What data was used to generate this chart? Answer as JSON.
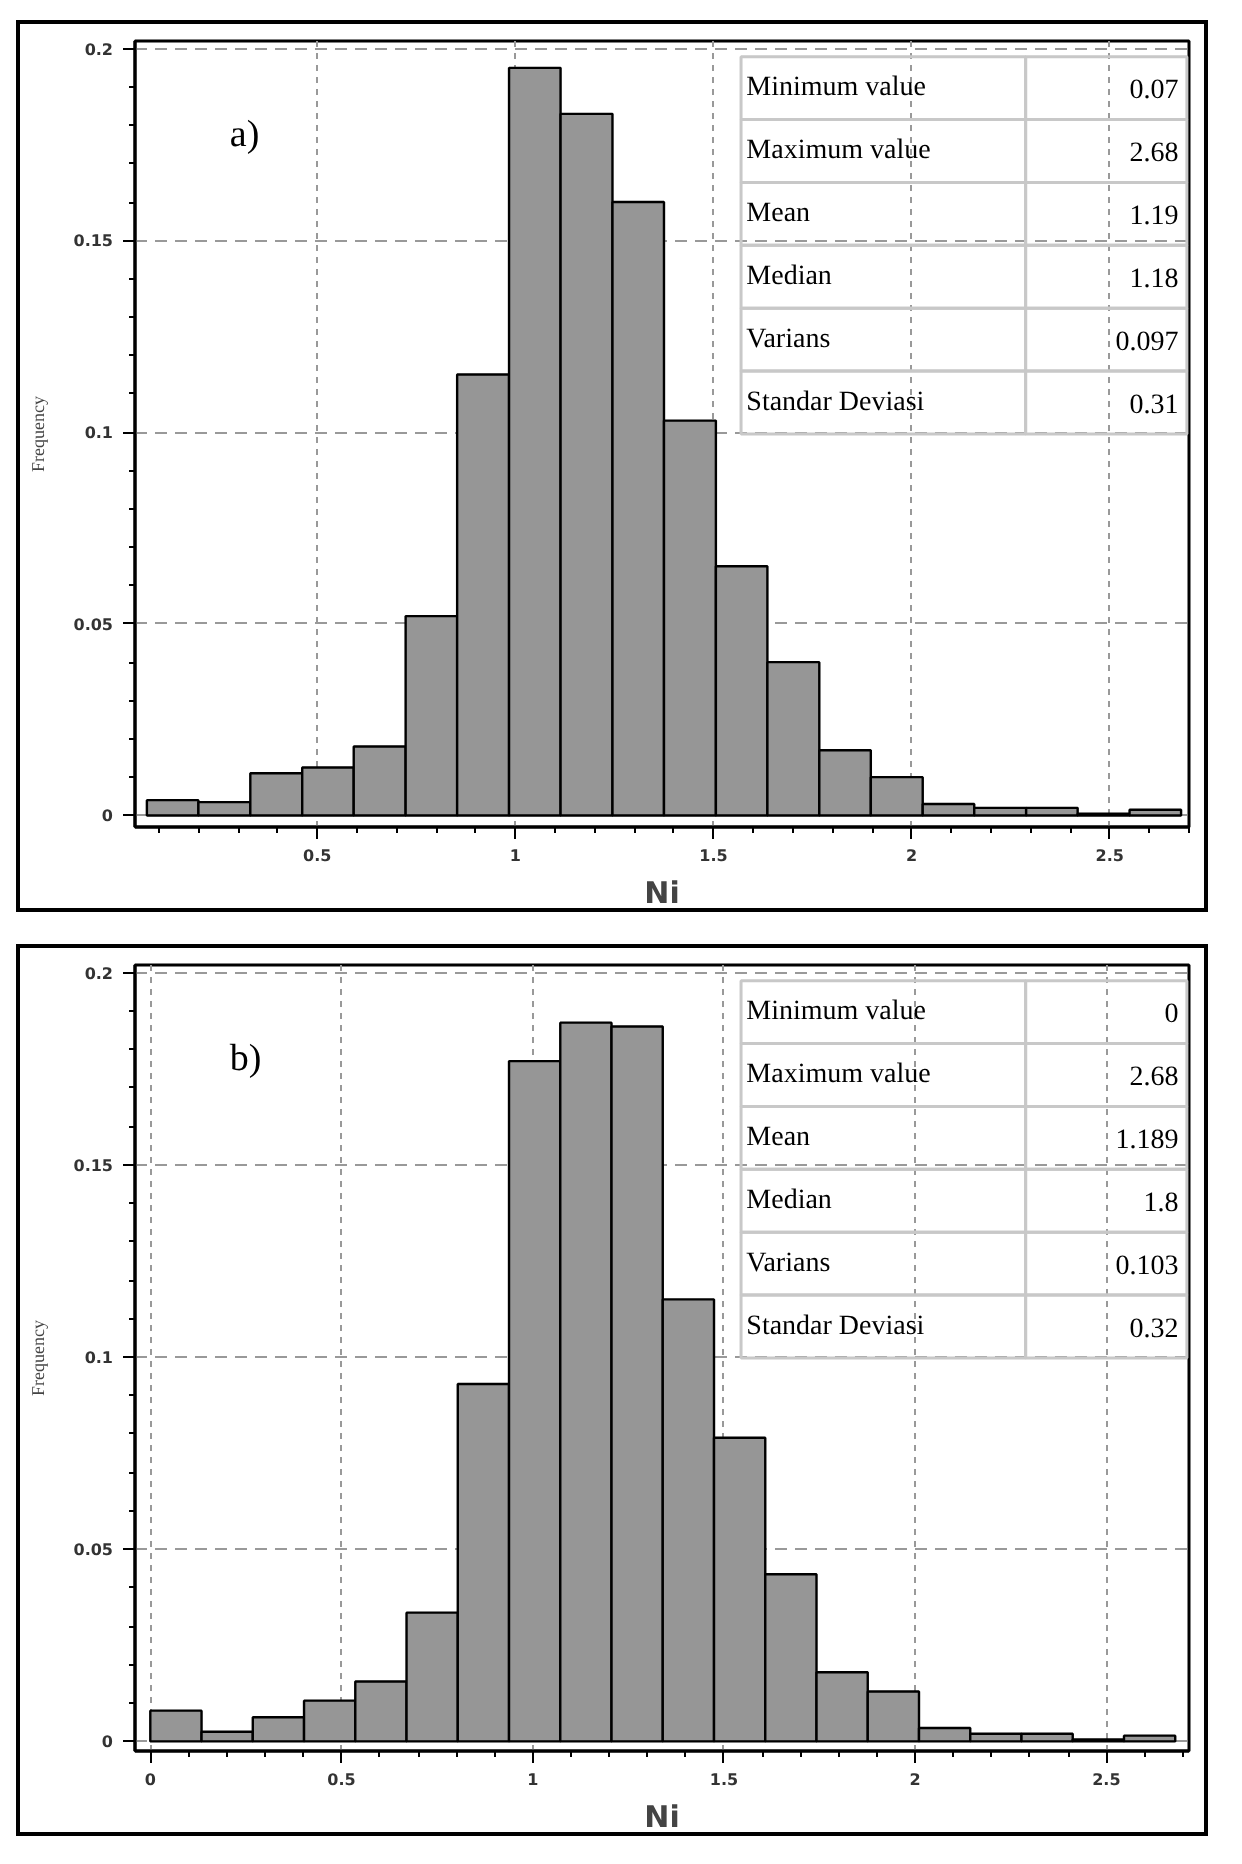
{
  "chart_data": [
    {
      "type": "histogram",
      "title": "a)",
      "xlabel": "Ni",
      "ylabel": "Frequency",
      "color": "#969696",
      "bins": [
        0.07,
        0.2,
        0.331,
        0.462,
        0.592,
        0.723,
        0.853,
        0.984,
        1.114,
        1.245,
        1.375,
        1.506,
        1.636,
        1.767,
        1.897,
        2.028,
        2.158,
        2.289,
        2.419,
        2.55,
        2.68
      ],
      "values": [
        0.004,
        0.0035,
        0.011,
        0.0125,
        0.018,
        0.052,
        0.115,
        0.195,
        0.183,
        0.16,
        0.103,
        0.065,
        0.04,
        0.017,
        0.01,
        0.003,
        0.002,
        0.002,
        0.0005,
        0.0015
      ],
      "xlim": [
        0.04,
        2.7
      ],
      "ylim": [
        -0.003,
        0.202
      ],
      "xticks": [
        0.5,
        1,
        1.5,
        2,
        2.5
      ],
      "yticks": [
        0,
        0.05,
        0.1,
        0.15,
        0.2
      ],
      "grid": true,
      "annotations": [
        "Minimum value",
        "0.07",
        "Maximum value",
        "2.68",
        "Mean",
        "1.19",
        "Median",
        "1.18",
        "Varians",
        "0.097",
        "Standar Deviasi",
        "0.31"
      ]
    },
    {
      "type": "histogram",
      "title": "b)",
      "xlabel": "Ni",
      "ylabel": "Frequency",
      "color": "#969696",
      "bins": [
        0,
        0.134,
        0.268,
        0.402,
        0.536,
        0.67,
        0.804,
        0.938,
        1.072,
        1.206,
        1.34,
        1.474,
        1.608,
        1.742,
        1.876,
        2.01,
        2.144,
        2.278,
        2.412,
        2.546,
        2.68
      ],
      "values": [
        0.008,
        0.0025,
        0.0063,
        0.0106,
        0.0156,
        0.0335,
        0.093,
        0.177,
        0.187,
        0.186,
        0.115,
        0.079,
        0.0435,
        0.018,
        0.013,
        0.0035,
        0.002,
        0.002,
        0.0005,
        0.0015
      ],
      "xlim": [
        -0.04,
        2.716
      ],
      "ylim": [
        -0.0025,
        0.202
      ],
      "xticks": [
        0,
        0.5,
        1,
        1.5,
        2,
        2.5
      ],
      "yticks": [
        0,
        0.05,
        0.1,
        0.15,
        0.2
      ],
      "grid": true,
      "annotations": [
        "Minimum value",
        "0",
        "Maximum value",
        "2.68",
        "Mean",
        "1.189",
        "Median",
        "1.8",
        "Varians",
        "0.103",
        "Standar Deviasi",
        "0.32"
      ]
    }
  ]
}
